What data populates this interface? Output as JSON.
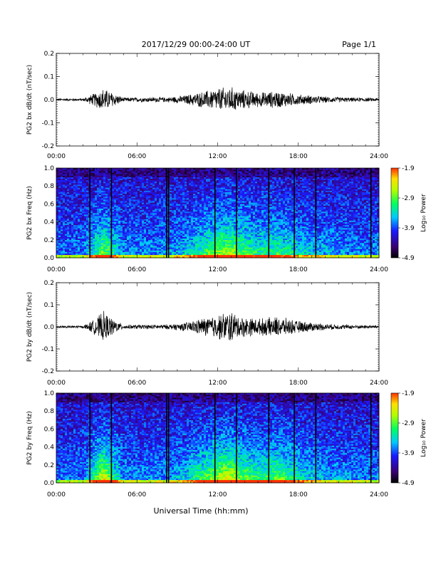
{
  "header": {
    "title": "2017/12/29  00:00-24:00 UT",
    "page": "Page 1/1"
  },
  "xaxis": {
    "label": "Universal Time (hh:mm)",
    "ticks": [
      "00:00",
      "06:00",
      "12:00",
      "18:00",
      "24:00"
    ]
  },
  "colorbar": {
    "label": "Log₁₀ Power",
    "ticks": [
      "-1.9",
      "-2.9",
      "-3.9",
      "-4.9"
    ],
    "colors": [
      "#000000",
      "#3a0070",
      "#1a1aff",
      "#00c8ff",
      "#00ff60",
      "#b0ff00",
      "#ffe000",
      "#ff3000"
    ]
  },
  "chart_data": [
    {
      "type": "line",
      "ylabel": "PG2 bx dB/dt (nT/sec)",
      "xlim": [
        0,
        24
      ],
      "ylim": [
        -0.2,
        0.2
      ],
      "yticks": [
        "0.2",
        "0.1",
        "0.0",
        "-0.1",
        "-0.2"
      ],
      "activity_envelope": {
        "hours": [
          0,
          2,
          2.8,
          3.5,
          4.2,
          5,
          8.3,
          9.5,
          11,
          12,
          13,
          13.5,
          15,
          16.5,
          18,
          20,
          22,
          24
        ],
        "amplitude": [
          0.006,
          0.006,
          0.03,
          0.055,
          0.035,
          0.01,
          0.012,
          0.02,
          0.04,
          0.055,
          0.06,
          0.05,
          0.035,
          0.04,
          0.025,
          0.015,
          0.01,
          0.008
        ]
      },
      "color": "#000000"
    },
    {
      "type": "heatmap",
      "ylabel": "PG2 bx Freq (Hz)",
      "xlim": [
        0,
        24
      ],
      "ylim": [
        0.0,
        1.0
      ],
      "yticks": [
        "1.0",
        "0.8",
        "0.6",
        "0.4",
        "0.2",
        "0.0"
      ],
      "zlim": [
        -4.9,
        -1.9
      ],
      "data_gaps_hours": [
        2.5,
        4.1,
        8.2,
        8.35,
        11.8,
        13.4,
        15.8,
        17.7,
        19.3,
        23.4
      ]
    },
    {
      "type": "line",
      "ylabel": "PG2 by dB/dt (nT/sec)",
      "xlim": [
        0,
        24
      ],
      "ylim": [
        -0.2,
        0.2
      ],
      "yticks": [
        "0.2",
        "0.1",
        "0.0",
        "-0.1",
        "-0.2"
      ],
      "activity_envelope": {
        "hours": [
          0,
          2,
          2.8,
          3.5,
          4.2,
          5,
          8.3,
          9.5,
          11,
          12,
          13,
          13.5,
          15,
          16.5,
          18,
          20,
          22,
          24
        ],
        "amplitude": [
          0.006,
          0.006,
          0.035,
          0.075,
          0.04,
          0.01,
          0.012,
          0.02,
          0.045,
          0.06,
          0.08,
          0.055,
          0.04,
          0.05,
          0.03,
          0.015,
          0.01,
          0.008
        ]
      },
      "color": "#000000"
    },
    {
      "type": "heatmap",
      "ylabel": "PG2 by Freq (Hz)",
      "xlim": [
        0,
        24
      ],
      "ylim": [
        0.0,
        1.0
      ],
      "yticks": [
        "1.0",
        "0.8",
        "0.6",
        "0.4",
        "0.2",
        "0.0"
      ],
      "zlim": [
        -4.9,
        -1.9
      ],
      "data_gaps_hours": [
        2.5,
        4.1,
        8.2,
        8.35,
        11.8,
        13.4,
        15.8,
        17.7,
        19.3,
        23.4
      ]
    }
  ]
}
